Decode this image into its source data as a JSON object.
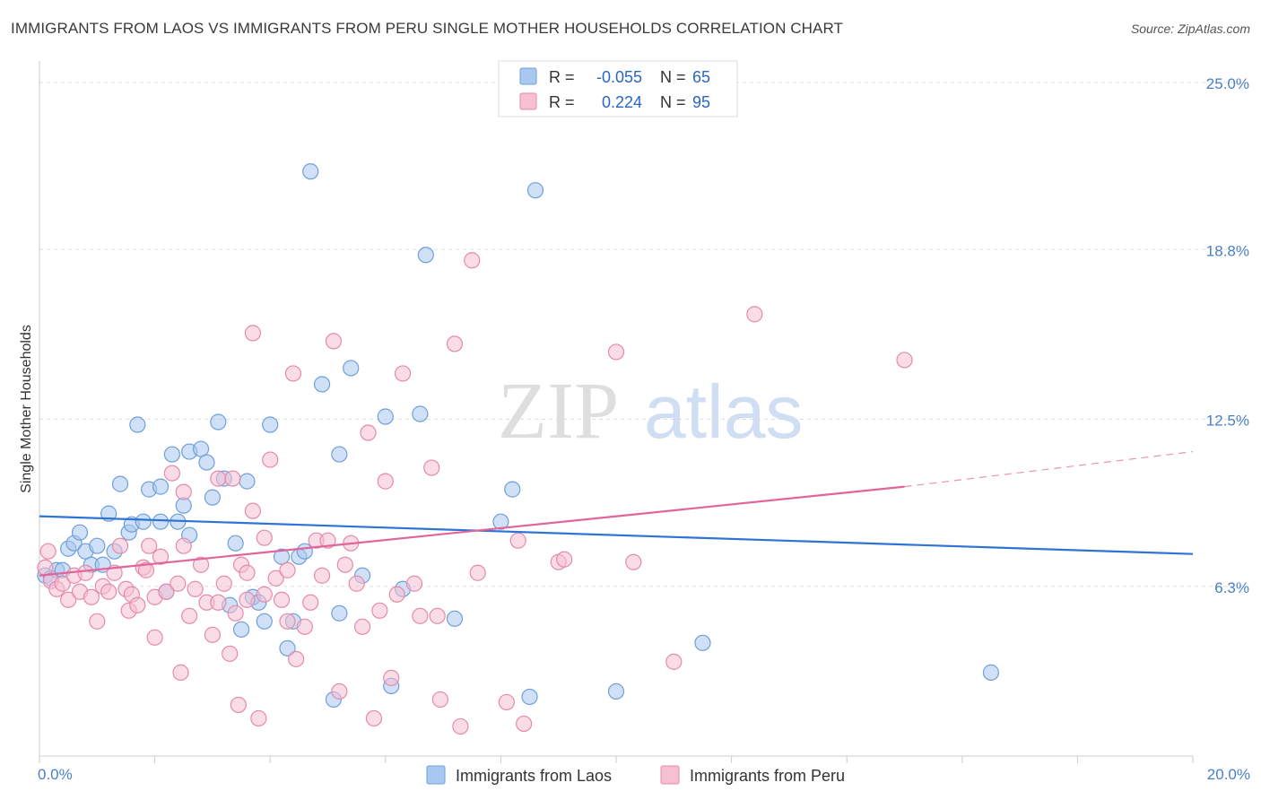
{
  "title": "IMMIGRANTS FROM LAOS VS IMMIGRANTS FROM PERU SINGLE MOTHER HOUSEHOLDS CORRELATION CHART",
  "source": "Source: ZipAtlas.com",
  "watermark": {
    "zip": "ZIP",
    "atlas": "atlas"
  },
  "colors": {
    "laos_fill": "#a9c8f0",
    "laos_stroke": "#6f9fd9",
    "laos_line": "#2e73d6",
    "peru_fill": "#f6bfd2",
    "peru_stroke": "#e58aaa",
    "peru_line": "#e0659a",
    "tick_text": "#4a7fc8",
    "grid": "#dddddd"
  },
  "legend_top": {
    "rows": [
      {
        "r_label": "R =",
        "r_value": "-0.055",
        "n_label": "N =",
        "n_value": "65"
      },
      {
        "r_label": "R =",
        "r_value": "0.224",
        "n_label": "N =",
        "n_value": "95"
      }
    ]
  },
  "chart_data": {
    "type": "scatter",
    "title": "IMMIGRANTS FROM LAOS VS IMMIGRANTS FROM PERU SINGLE MOTHER HOUSEHOLDS CORRELATION CHART",
    "xlabel": "",
    "ylabel": "Single Mother Households",
    "xlim": [
      0,
      20
    ],
    "ylim": [
      0,
      25.8
    ],
    "x_tick_labels": [
      "0.0%",
      "20.0%"
    ],
    "y_ticks": [
      6.3,
      12.5,
      18.8,
      25.0
    ],
    "y_tick_labels": [
      "6.3%",
      "12.5%",
      "18.8%",
      "25.0%"
    ],
    "grid": "horizontal dashed",
    "legend_placement": "top-center and bottom",
    "series": [
      {
        "name": "Immigrants from Laos",
        "trend": {
          "x": [
            0,
            20
          ],
          "y": [
            8.9,
            7.5
          ]
        },
        "points": [
          [
            0.1,
            6.7
          ],
          [
            0.2,
            6.6
          ],
          [
            0.3,
            6.9
          ],
          [
            0.4,
            6.9
          ],
          [
            0.5,
            7.7
          ],
          [
            0.6,
            7.9
          ],
          [
            0.7,
            8.3
          ],
          [
            0.8,
            7.6
          ],
          [
            0.9,
            7.1
          ],
          [
            1.0,
            7.8
          ],
          [
            1.1,
            7.1
          ],
          [
            1.2,
            9.0
          ],
          [
            1.3,
            7.6
          ],
          [
            1.4,
            10.1
          ],
          [
            1.55,
            8.3
          ],
          [
            1.6,
            8.6
          ],
          [
            1.7,
            12.3
          ],
          [
            1.8,
            8.7
          ],
          [
            1.9,
            9.9
          ],
          [
            2.1,
            8.7
          ],
          [
            2.1,
            10.0
          ],
          [
            2.2,
            6.1
          ],
          [
            2.3,
            11.2
          ],
          [
            2.4,
            8.7
          ],
          [
            2.5,
            9.3
          ],
          [
            2.6,
            8.2
          ],
          [
            2.6,
            11.3
          ],
          [
            2.8,
            11.4
          ],
          [
            2.9,
            10.9
          ],
          [
            3.0,
            9.6
          ],
          [
            3.1,
            12.4
          ],
          [
            3.2,
            10.3
          ],
          [
            3.3,
            5.6
          ],
          [
            3.4,
            7.9
          ],
          [
            3.5,
            4.7
          ],
          [
            3.6,
            10.2
          ],
          [
            3.7,
            5.9
          ],
          [
            3.8,
            5.7
          ],
          [
            3.9,
            5.0
          ],
          [
            4.0,
            12.3
          ],
          [
            4.2,
            7.4
          ],
          [
            4.3,
            4.0
          ],
          [
            4.4,
            5.0
          ],
          [
            4.5,
            7.4
          ],
          [
            4.6,
            7.6
          ],
          [
            4.7,
            21.7
          ],
          [
            4.9,
            13.8
          ],
          [
            5.1,
            2.1
          ],
          [
            5.2,
            5.3
          ],
          [
            5.2,
            11.2
          ],
          [
            5.4,
            14.4
          ],
          [
            5.6,
            6.7
          ],
          [
            6.0,
            12.6
          ],
          [
            6.1,
            2.6
          ],
          [
            6.3,
            6.2
          ],
          [
            6.6,
            12.7
          ],
          [
            6.7,
            18.6
          ],
          [
            7.2,
            5.1
          ],
          [
            8.0,
            8.7
          ],
          [
            8.2,
            9.9
          ],
          [
            8.5,
            2.2
          ],
          [
            8.6,
            21.0
          ],
          [
            10.0,
            2.4
          ],
          [
            11.5,
            4.2
          ],
          [
            16.5,
            3.1
          ]
        ]
      },
      {
        "name": "Immigrants from Peru",
        "trend": {
          "x": [
            0,
            15
          ],
          "y": [
            6.7,
            10.0
          ]
        },
        "trend_dashed": {
          "x": [
            15,
            20
          ],
          "y": [
            10.0,
            11.3
          ]
        },
        "points": [
          [
            0.1,
            7.0
          ],
          [
            0.2,
            6.5
          ],
          [
            0.3,
            6.2
          ],
          [
            0.4,
            6.4
          ],
          [
            0.5,
            5.8
          ],
          [
            0.6,
            6.7
          ],
          [
            0.7,
            6.1
          ],
          [
            0.8,
            6.8
          ],
          [
            0.9,
            5.9
          ],
          [
            1.0,
            5.0
          ],
          [
            1.1,
            6.3
          ],
          [
            1.2,
            6.1
          ],
          [
            1.3,
            6.8
          ],
          [
            1.4,
            7.8
          ],
          [
            1.5,
            6.2
          ],
          [
            1.55,
            5.4
          ],
          [
            1.6,
            6.0
          ],
          [
            1.7,
            5.6
          ],
          [
            1.8,
            7.0
          ],
          [
            1.85,
            6.9
          ],
          [
            1.9,
            7.8
          ],
          [
            2.0,
            5.9
          ],
          [
            2.0,
            4.4
          ],
          [
            2.1,
            7.4
          ],
          [
            2.2,
            6.1
          ],
          [
            2.3,
            10.5
          ],
          [
            2.4,
            6.4
          ],
          [
            2.45,
            3.1
          ],
          [
            2.5,
            9.8
          ],
          [
            2.6,
            5.2
          ],
          [
            2.7,
            6.2
          ],
          [
            2.8,
            7.1
          ],
          [
            2.9,
            5.7
          ],
          [
            3.0,
            4.5
          ],
          [
            3.1,
            10.3
          ],
          [
            3.1,
            5.7
          ],
          [
            3.2,
            6.4
          ],
          [
            3.3,
            3.8
          ],
          [
            3.35,
            10.3
          ],
          [
            3.4,
            5.3
          ],
          [
            3.45,
            1.9
          ],
          [
            3.5,
            7.1
          ],
          [
            3.6,
            6.8
          ],
          [
            3.6,
            5.8
          ],
          [
            3.7,
            15.7
          ],
          [
            3.7,
            9.1
          ],
          [
            3.8,
            1.4
          ],
          [
            3.9,
            8.1
          ],
          [
            4.0,
            11.0
          ],
          [
            4.1,
            6.6
          ],
          [
            4.2,
            5.8
          ],
          [
            4.3,
            5.0
          ],
          [
            4.3,
            6.9
          ],
          [
            4.4,
            14.2
          ],
          [
            4.45,
            3.6
          ],
          [
            4.6,
            4.8
          ],
          [
            4.7,
            5.7
          ],
          [
            4.8,
            8.0
          ],
          [
            4.9,
            6.7
          ],
          [
            5.0,
            8.0
          ],
          [
            5.1,
            15.4
          ],
          [
            5.2,
            2.4
          ],
          [
            5.3,
            7.1
          ],
          [
            5.4,
            7.9
          ],
          [
            5.5,
            6.4
          ],
          [
            5.6,
            4.8
          ],
          [
            5.7,
            12.0
          ],
          [
            5.8,
            1.4
          ],
          [
            5.9,
            5.4
          ],
          [
            6.0,
            10.2
          ],
          [
            6.1,
            2.9
          ],
          [
            6.2,
            6.0
          ],
          [
            6.3,
            14.2
          ],
          [
            6.5,
            6.4
          ],
          [
            6.6,
            5.2
          ],
          [
            6.8,
            10.7
          ],
          [
            6.9,
            5.2
          ],
          [
            6.95,
            2.1
          ],
          [
            7.2,
            15.3
          ],
          [
            7.3,
            1.1
          ],
          [
            7.5,
            18.4
          ],
          [
            7.6,
            6.8
          ],
          [
            8.1,
            2.0
          ],
          [
            8.3,
            8.0
          ],
          [
            8.4,
            1.2
          ],
          [
            9.0,
            7.2
          ],
          [
            9.1,
            7.3
          ],
          [
            10.0,
            15.0
          ],
          [
            10.3,
            7.2
          ],
          [
            11.0,
            3.5
          ],
          [
            12.4,
            16.4
          ],
          [
            15.0,
            14.7
          ],
          [
            0.15,
            7.6
          ],
          [
            2.5,
            7.8
          ],
          [
            3.9,
            6.0
          ]
        ]
      }
    ]
  },
  "bottom_legend": [
    {
      "label": "Immigrants from Laos"
    },
    {
      "label": "Immigrants from Peru"
    }
  ]
}
